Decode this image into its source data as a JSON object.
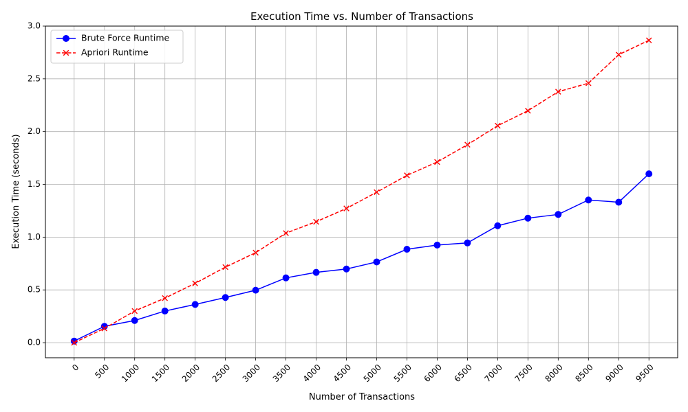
{
  "chart_data": {
    "type": "line",
    "title": "Execution Time vs. Number of Transactions",
    "xlabel": "Number of Transactions",
    "ylabel": "Execution Time (seconds)",
    "x": [
      0,
      500,
      1000,
      1500,
      2000,
      2500,
      3000,
      3500,
      4000,
      4500,
      5000,
      5500,
      6000,
      6500,
      7000,
      7500,
      8000,
      8500,
      9000,
      9500
    ],
    "x_tick_labels": [
      "0",
      "500",
      "1000",
      "1500",
      "2000",
      "2500",
      "3000",
      "3500",
      "4000",
      "4500",
      "5000",
      "5500",
      "6000",
      "6500",
      "7000",
      "7500",
      "8000",
      "8500",
      "9000",
      "9500"
    ],
    "xlim": [
      -475,
      9975
    ],
    "ylim": [
      -0.143,
      3.0
    ],
    "y_ticks": [
      0.0,
      0.5,
      1.0,
      1.5,
      2.0,
      2.5,
      3.0
    ],
    "y_tick_labels": [
      "0.0",
      "0.5",
      "1.0",
      "1.5",
      "2.0",
      "2.5",
      "3.0"
    ],
    "grid": true,
    "legend_position": "top-left",
    "series": [
      {
        "name": "Brute Force Runtime",
        "color": "#0000ff",
        "line_style": "solid",
        "marker": "circle",
        "values": [
          0.015,
          0.155,
          0.21,
          0.3,
          0.362,
          0.428,
          0.497,
          0.614,
          0.666,
          0.698,
          0.765,
          0.885,
          0.925,
          0.945,
          1.108,
          1.18,
          1.215,
          1.352,
          1.331,
          1.6
        ]
      },
      {
        "name": "Apriori Runtime",
        "color": "#ff0000",
        "line_style": "dashed",
        "marker": "x",
        "values": [
          0.0,
          0.135,
          0.3,
          0.422,
          0.562,
          0.716,
          0.853,
          1.038,
          1.146,
          1.272,
          1.426,
          1.585,
          1.712,
          1.876,
          2.056,
          2.198,
          2.378,
          2.459,
          2.729,
          2.865
        ]
      }
    ]
  }
}
